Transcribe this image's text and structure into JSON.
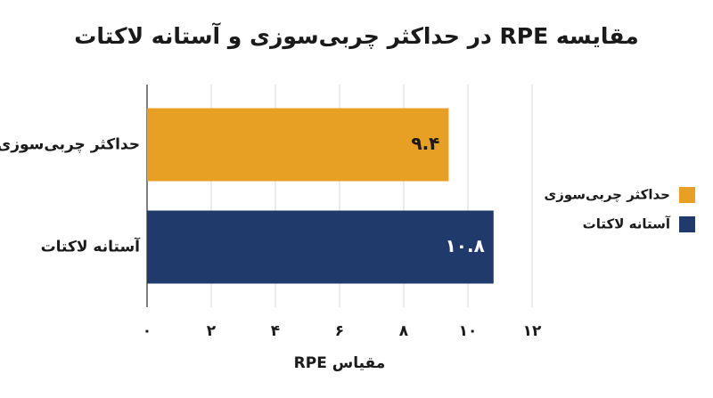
{
  "chart_data": {
    "type": "barh",
    "title": "مقایسه RPE در حداکثر چربی‌سوزی و آستانه لاکتات",
    "xlabel": "مقیاس RPE",
    "categories": [
      "حداکثر چربی‌سوزی",
      "آستانه لاکتات"
    ],
    "values": [
      9.4,
      10.8
    ],
    "value_labels": [
      "۹.۴",
      "۱۰.۸"
    ],
    "colors": [
      "#e8a024",
      "#1f3a6b"
    ],
    "xlim": [
      0,
      12
    ],
    "xticks": [
      {
        "value": 0,
        "label": "۰"
      },
      {
        "value": 2,
        "label": "۲"
      },
      {
        "value": 4,
        "label": "۴"
      },
      {
        "value": 6,
        "label": "۶"
      },
      {
        "value": 8,
        "label": "۸"
      },
      {
        "value": 10,
        "label": "۱۰"
      },
      {
        "value": 12,
        "label": "۱۲"
      }
    ],
    "grid": true,
    "legend": "right"
  }
}
